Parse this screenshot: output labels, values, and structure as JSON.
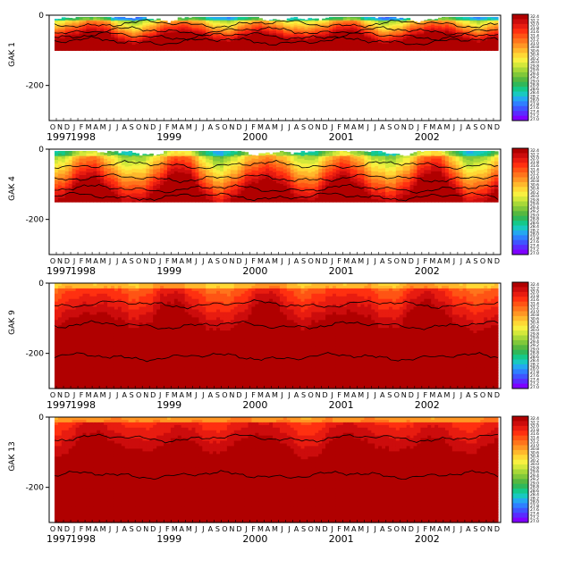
{
  "chart_data": [
    {
      "type": "heatmap",
      "station_label": "GAK 1",
      "ylabel": "",
      "y_ticks": [
        0,
        -200
      ],
      "ylim": [
        -300,
        0
      ],
      "data_bottom_depth": -100,
      "x_range": [
        "1997-10",
        "2002-12"
      ],
      "month_letters": [
        "O",
        "N",
        "D",
        "J",
        "F",
        "M",
        "A",
        "M",
        "J",
        "J",
        "A",
        "S",
        "O",
        "N",
        "D",
        "J",
        "F",
        "M",
        "A",
        "M",
        "J",
        "J",
        "A",
        "S",
        "O",
        "N",
        "D",
        "J",
        "F",
        "M",
        "A",
        "M",
        "J",
        "J",
        "A",
        "S",
        "O",
        "N",
        "D",
        "J",
        "F",
        "M",
        "A",
        "M",
        "J",
        "J",
        "A",
        "S",
        "O",
        "N",
        "D",
        "J",
        "F",
        "M",
        "A",
        "M",
        "J",
        "J",
        "A",
        "S",
        "O",
        "N",
        "D"
      ],
      "year_labels": [
        "1997",
        "1998",
        "1999",
        "2000",
        "2001",
        "2002"
      ],
      "colorbar": "rainbow",
      "colormap_character": "cool (blue/green) near surface, warm (orange/red) at depth; intermittent purple fresh/cold patches at top"
    },
    {
      "type": "heatmap",
      "station_label": "GAK 4",
      "ylabel": "",
      "y_ticks": [
        0,
        -200
      ],
      "ylim": [
        -300,
        0
      ],
      "data_bottom_depth": -150,
      "x_range": [
        "1997-10",
        "2002-12"
      ],
      "month_letters": [
        "O",
        "N",
        "D",
        "J",
        "F",
        "M",
        "A",
        "M",
        "J",
        "J",
        "A",
        "S",
        "O",
        "N",
        "D",
        "J",
        "F",
        "M",
        "A",
        "M",
        "J",
        "J",
        "A",
        "S",
        "O",
        "N",
        "D",
        "J",
        "F",
        "M",
        "A",
        "M",
        "J",
        "J",
        "A",
        "S",
        "O",
        "N",
        "D",
        "J",
        "F",
        "M",
        "A",
        "M",
        "J",
        "J",
        "A",
        "S",
        "O",
        "N",
        "D",
        "J",
        "F",
        "M",
        "A",
        "M",
        "J",
        "J",
        "A",
        "S",
        "O",
        "N",
        "D"
      ],
      "year_labels": [
        "1997",
        "1998",
        "1999",
        "2000",
        "2001",
        "2002"
      ],
      "colorbar": "rainbow",
      "colormap_character": "green near surface, yellow/orange/red at depth"
    },
    {
      "type": "heatmap",
      "station_label": "GAK 9",
      "ylabel": "",
      "y_ticks": [
        0,
        -200
      ],
      "ylim": [
        -300,
        0
      ],
      "data_bottom_depth": -300,
      "x_range": [
        "1997-10",
        "2002-12"
      ],
      "month_letters": [
        "O",
        "N",
        "D",
        "J",
        "F",
        "M",
        "A",
        "M",
        "J",
        "J",
        "A",
        "S",
        "O",
        "N",
        "D",
        "J",
        "F",
        "M",
        "A",
        "M",
        "J",
        "J",
        "A",
        "S",
        "O",
        "N",
        "D",
        "J",
        "F",
        "M",
        "A",
        "M",
        "J",
        "J",
        "A",
        "S",
        "O",
        "N",
        "D",
        "J",
        "F",
        "M",
        "A",
        "M",
        "J",
        "J",
        "A",
        "S",
        "O",
        "N",
        "D",
        "J",
        "F",
        "M",
        "A",
        "M",
        "J",
        "J",
        "A",
        "S",
        "O",
        "N",
        "D"
      ],
      "year_labels": [
        "1997",
        "1998",
        "1999",
        "2000",
        "2001",
        "2002"
      ],
      "colorbar": "rainbow",
      "colormap_character": "yellow/orange at surface, red through the column, dark red at depth"
    },
    {
      "type": "heatmap",
      "station_label": "GAK 13",
      "ylabel": "",
      "y_ticks": [
        0,
        -200
      ],
      "ylim": [
        -300,
        0
      ],
      "data_bottom_depth": -300,
      "x_range": [
        "1997-10",
        "2002-12"
      ],
      "month_letters": [
        "O",
        "N",
        "D",
        "J",
        "F",
        "M",
        "A",
        "M",
        "J",
        "J",
        "A",
        "S",
        "O",
        "N",
        "D",
        "J",
        "F",
        "M",
        "A",
        "M",
        "J",
        "J",
        "A",
        "S",
        "O",
        "N",
        "D",
        "J",
        "F",
        "M",
        "A",
        "M",
        "J",
        "J",
        "A",
        "S",
        "O",
        "N",
        "D",
        "J",
        "F",
        "M",
        "A",
        "M",
        "J",
        "J",
        "A",
        "S",
        "O",
        "N",
        "D",
        "J",
        "F",
        "M",
        "A",
        "M",
        "J",
        "J",
        "A",
        "S",
        "O",
        "N",
        "D"
      ],
      "year_labels": [
        "1997",
        "1998",
        "1999",
        "2000",
        "2001",
        "2002"
      ],
      "colorbar": "rainbow",
      "colormap_character": "orange/red near surface, dark red below about -150"
    }
  ],
  "colorbar_labels": [
    "32.4",
    "32.2",
    "32.0",
    "31.8",
    "31.6",
    "31.4",
    "31.2",
    "31.0",
    "30.8",
    "30.6",
    "30.4",
    "30.2",
    "30.0",
    "29.8",
    "29.6",
    "29.4",
    "29.2",
    "29.0",
    "28.8",
    "28.6",
    "28.4",
    "28.2",
    "28.0",
    "27.8",
    "27.6",
    "27.4",
    "27.2",
    "27.0"
  ],
  "colors": {
    "rainbow": [
      "#7f00ff",
      "#5a2bff",
      "#3f55ff",
      "#2f7fff",
      "#24a8f0",
      "#18c9c0",
      "#14c98a",
      "#2fb85a",
      "#55b840",
      "#80c83a",
      "#a8d838",
      "#d4e83a",
      "#f8f040",
      "#ffd835",
      "#ffb82c",
      "#ff9624",
      "#ff741c",
      "#ff5414",
      "#ff3010",
      "#e81c10",
      "#cc0c0c",
      "#b00000"
    ]
  }
}
